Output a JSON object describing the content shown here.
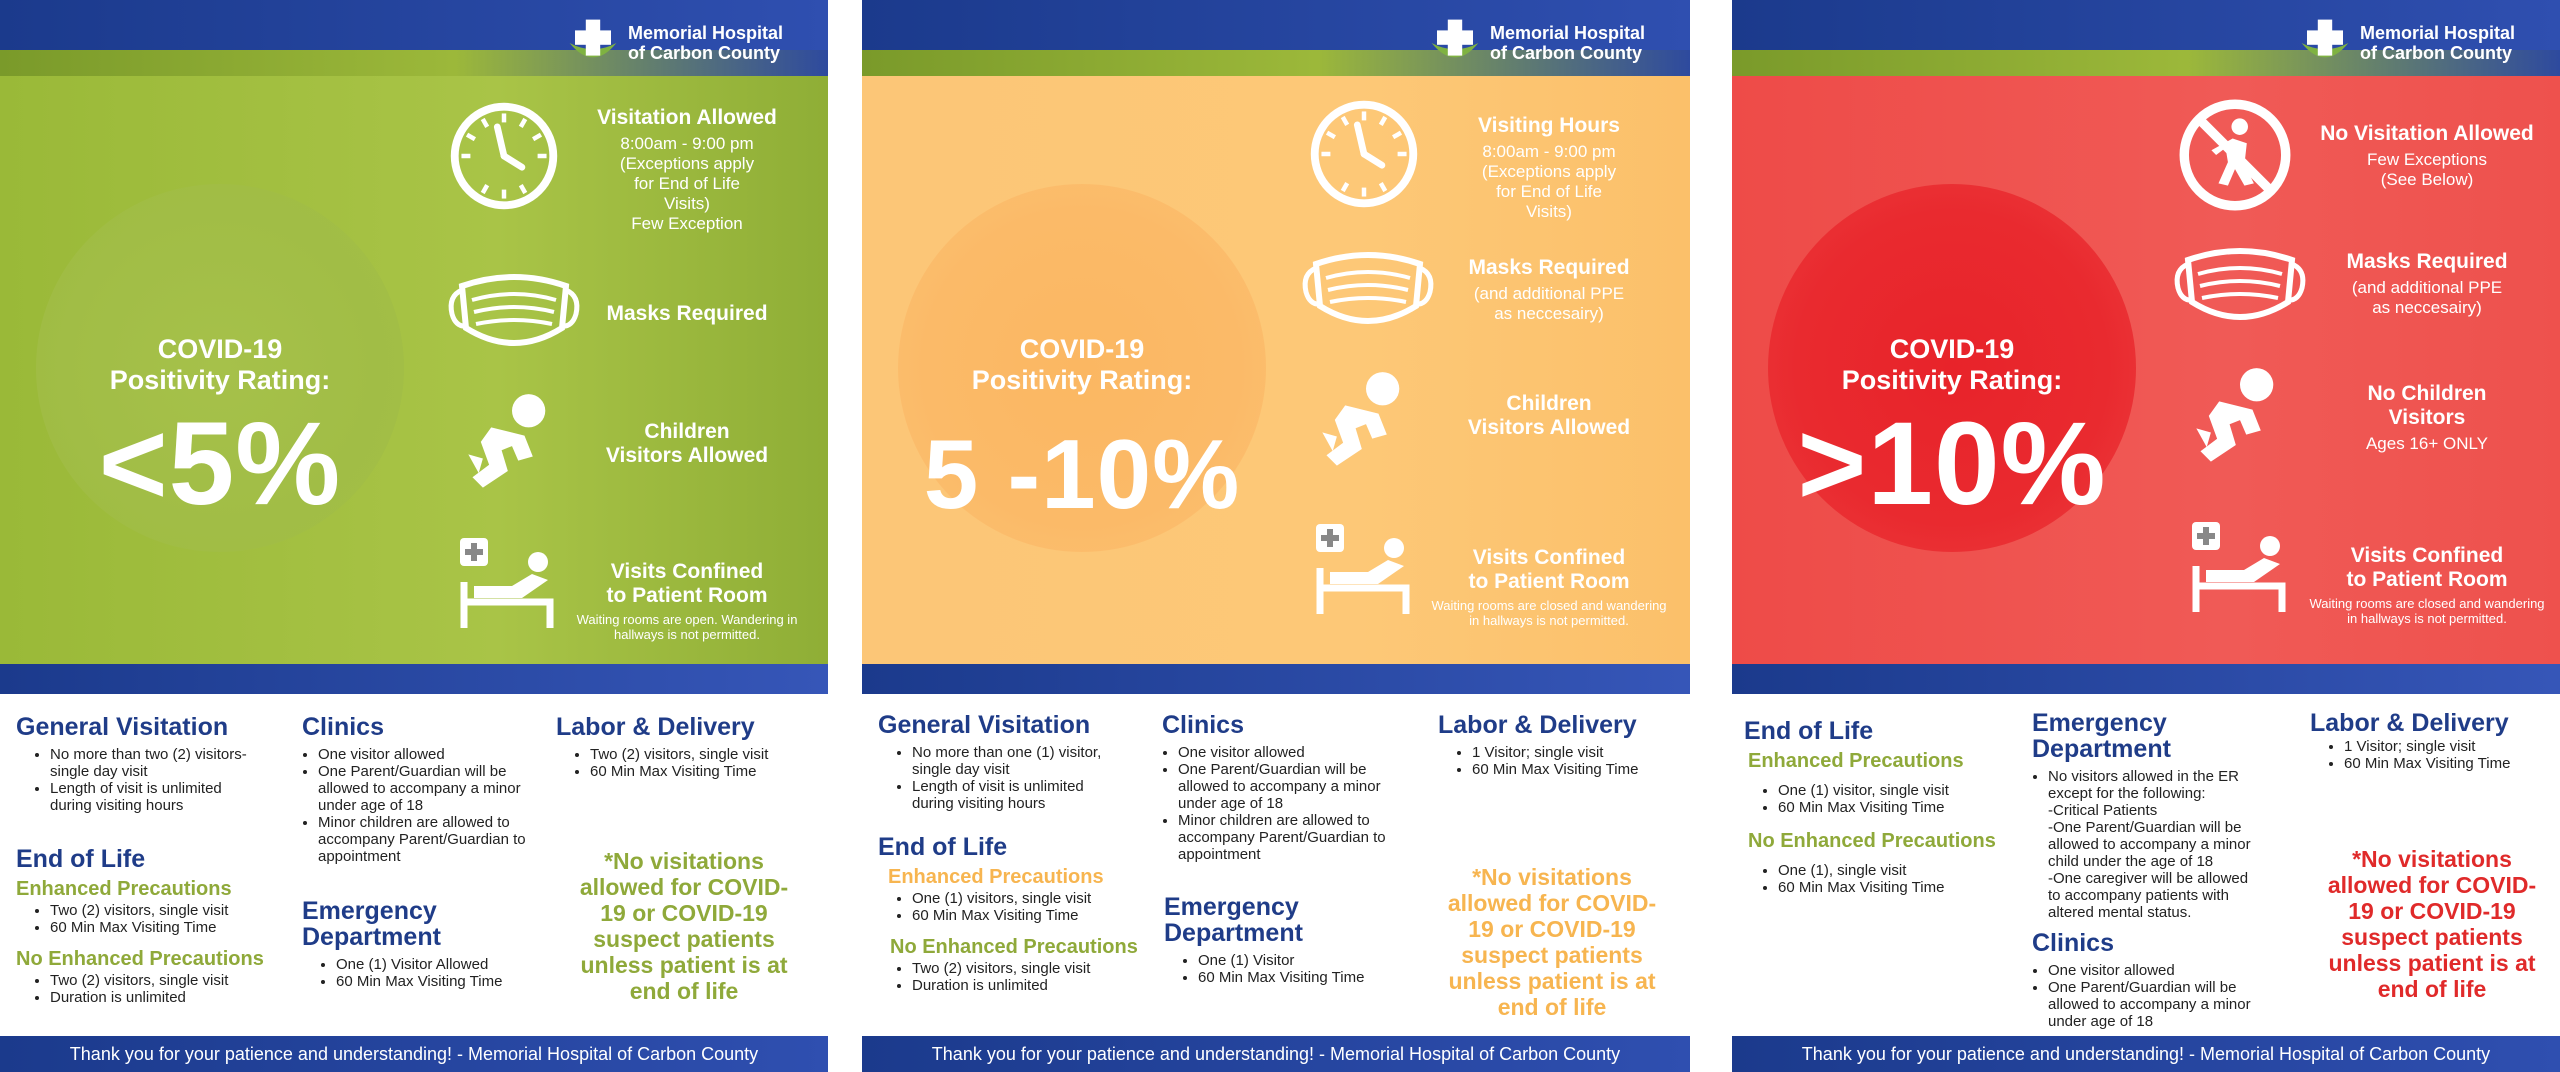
{
  "logo": {
    "line1": "Memorial Hospital",
    "line2": "of Carbon County"
  },
  "rating_label": "COVID-19\nPositivity Rating:",
  "footer": "Thank you for your patience and understanding! - Memorial Hospital of Carbon County",
  "posters": [
    {
      "rating": "<5%",
      "colors": {
        "hero": "#9cb83a",
        "circle": "#a8c24c",
        "accent": "#8fa93a"
      },
      "features": {
        "f1_icon": "clock-icon",
        "f1_title": "Visitation Allowed",
        "f1_detail": "8:00am - 9:00 pm\n(Exceptions apply\nfor End of Life\nVisits)\nFew Exception",
        "f2_icon": "mask-icon",
        "f2_title": "Masks Required",
        "f2_detail": "",
        "f3_icon": "child-icon",
        "f3_title": "Children\nVisitors Allowed",
        "f3_detail": "",
        "f4_icon": "patient-bed-icon",
        "f4_title": "Visits Confined\nto Patient Room",
        "f4_note": "Waiting rooms are open.  Wandering in\nhallways is not permitted."
      },
      "general": {
        "title": "General Visitation",
        "items": [
          "No more than two (2) visitors-\nsingle day visit",
          "Length of visit is unlimited\nduring visiting hours"
        ]
      },
      "eol": {
        "title": "End of Life",
        "enh_title": "Enhanced Precautions",
        "enh_items": [
          "Two (2) visitors, single visit",
          "60 Min Max Visiting Time"
        ],
        "noenh_title": "No Enhanced Precautions",
        "noenh_items": [
          "Two (2) visitors, single visit",
          "Duration is unlimited"
        ]
      },
      "clinics": {
        "title": "Clinics",
        "items": [
          "One visitor allowed",
          "One Parent/Guardian will be\nallowed to accompany a minor\nunder age of 18",
          "Minor children are allowed to\naccompany Parent/Guardian to\nappointment"
        ]
      },
      "ed": {
        "title": "Emergency\nDepartment",
        "items": [
          "One (1) Visitor Allowed",
          "60 Min Max Visiting Time"
        ]
      },
      "labor": {
        "title": "Labor & Delivery",
        "items": [
          "Two (2) visitors, single visit",
          "60 Min Max Visiting Time"
        ]
      },
      "warning": "*No visitations\nallowed for COVID-\n19 or COVID-19\nsuspect patients\nunless patient is at\nend of life"
    },
    {
      "rating": "5 -10%",
      "colors": {
        "hero": "#fdc573",
        "circle": "#fbb96a",
        "accent": "#f7b550"
      },
      "features": {
        "f1_icon": "clock-icon",
        "f1_title": "Visiting Hours",
        "f1_detail": "8:00am - 9:00 pm\n(Exceptions apply\nfor End of Life\nVisits)",
        "f2_icon": "mask-icon",
        "f2_title": "Masks Required",
        "f2_detail": "(and additional PPE\nas neccesairy)",
        "f3_icon": "child-icon",
        "f3_title": "Children\nVisitors Allowed",
        "f3_detail": "",
        "f4_icon": "patient-bed-icon",
        "f4_title": "Visits Confined\nto Patient Room",
        "f4_note": "Waiting rooms are closed and wandering\nin hallways is not permitted."
      },
      "general": {
        "title": "General Visitation",
        "items": [
          "No more than one (1) visitor,\nsingle day visit",
          "Length of visit is unlimited\nduring visiting hours"
        ]
      },
      "eol": {
        "title": "End of Life",
        "enh_title": "Enhanced Precautions",
        "enh_items": [
          "One (1) visitors, single visit",
          "60 Min Max Visiting Time"
        ],
        "noenh_title": "No Enhanced Precautions",
        "noenh_items": [
          "Two (2) visitors, single visit",
          "Duration is unlimited"
        ]
      },
      "clinics": {
        "title": "Clinics",
        "items": [
          "One visitor allowed",
          "One Parent/Guardian will be\nallowed to accompany a minor\nunder age of 18",
          "Minor children are allowed to\naccompany Parent/Guardian to\nappointment"
        ]
      },
      "ed": {
        "title": "Emergency\nDepartment",
        "items": [
          "One (1) Visitor",
          "60 Min Max Visiting Time"
        ]
      },
      "labor": {
        "title": "Labor & Delivery",
        "items": [
          "1 Visitor; single visit",
          "60 Min Max Visiting Time"
        ]
      },
      "warning": "*No visitations\nallowed for COVID-\n19 or COVID-19\nsuspect patients\nunless patient is at\nend of life"
    },
    {
      "rating": ">10%",
      "colors": {
        "hero": "#ef5350",
        "circle": "#e8262c",
        "accent": "#e02a2a"
      },
      "features": {
        "f1_icon": "no-entry-icon",
        "f1_title": "No Visitation Allowed",
        "f1_detail": "Few Exceptions\n(See Below)",
        "f2_icon": "mask-icon",
        "f2_title": "Masks Required",
        "f2_detail": "(and additional PPE\nas neccesairy)",
        "f3_icon": "child-icon",
        "f3_title": "No Children\nVisitors",
        "f3_detail": "Ages 16+ ONLY",
        "f4_icon": "patient-bed-icon",
        "f4_title": "Visits Confined\nto Patient Room",
        "f4_note": "Waiting rooms are closed and wandering\nin hallways is not permitted."
      },
      "eol": {
        "title": "End of Life",
        "enh_title": "Enhanced Precautions",
        "enh_items": [
          "One (1) visitor, single visit",
          "60 Min Max Visiting Time"
        ],
        "noenh_title": "No Enhanced Precautions",
        "noenh_items": [
          "One (1), single visit",
          "60 Min Max Visiting Time"
        ]
      },
      "ed": {
        "title": "Emergency\nDepartment",
        "items": [
          "No visitors allowed in the ER\nexcept for the following:"
        ],
        "plain": "-Critical Patients\n-One Parent/Guardian will be\nallowed to accompany a minor\nchild under the age of 18\n-One caregiver will be allowed\nto accompany patients with\naltered mental status."
      },
      "clinics": {
        "title": "Clinics",
        "items": [
          "One visitor allowed",
          "One Parent/Guardian will be\nallowed to accompany a minor\nunder age of 18"
        ]
      },
      "labor": {
        "title": "Labor & Delivery",
        "items": [
          "1 Visitor; single visit",
          "60 Min Max Visiting Time"
        ]
      },
      "warning": "*No visitations\nallowed for COVID-\n19 or COVID-19\nsuspect patients\nunless patient is at\nend of life"
    }
  ]
}
